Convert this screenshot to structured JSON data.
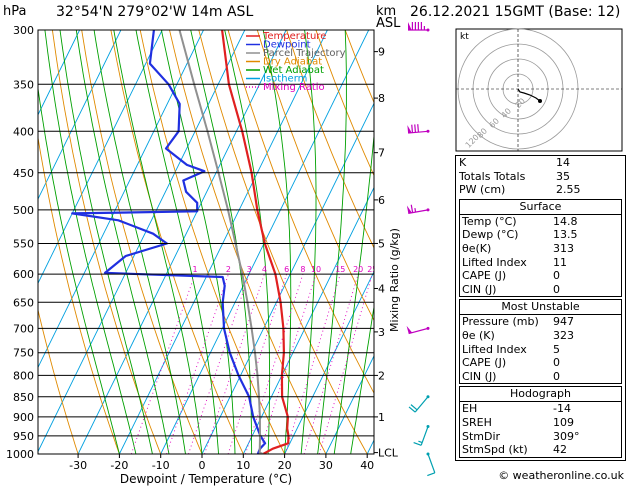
{
  "header": {
    "hpa_unit": "hPa",
    "location": "32°54'N  279°02'W  14m  ASL",
    "km_unit": "km",
    "asl_unit": "ASL",
    "datetime": "26.12.2021  15GMT  (Base: 12)"
  },
  "legend": [
    {
      "label": "Temperature",
      "color": "#e02020"
    },
    {
      "label": "Dewpoint",
      "color": "#2030e0"
    },
    {
      "label": "Parcel Trajectory",
      "color": "#909090"
    },
    {
      "label": "Dry Adiabat",
      "color": "#e08a00"
    },
    {
      "label": "Wet Adiabat",
      "color": "#00a000"
    },
    {
      "label": "Isotherm",
      "color": "#00a0e0"
    },
    {
      "label": "Mixing Ratio",
      "color": "#e000c0"
    }
  ],
  "chart_data": {
    "type": "line",
    "xlabel": "Dewpoint / Temperature (°C)",
    "ylabel_right": "Mixing Ratio (g/kg)",
    "x_ticks": [
      -30,
      -20,
      -10,
      0,
      10,
      20,
      30,
      40
    ],
    "x_tick_labels": [
      "-30",
      "-20",
      "-10",
      "0",
      "10",
      "20",
      "30",
      "40"
    ],
    "pressure_levels": [
      300,
      350,
      400,
      450,
      500,
      550,
      600,
      650,
      700,
      750,
      800,
      850,
      900,
      950,
      1000
    ],
    "pressure_labels": [
      "300",
      "350",
      "400",
      "450",
      "500",
      "550",
      "600",
      "650",
      "700",
      "750",
      "800",
      "850",
      "900",
      "950",
      "1000"
    ],
    "km_ticks": [
      {
        "label": "9",
        "p": 319
      },
      {
        "label": "8",
        "p": 364
      },
      {
        "label": "7",
        "p": 425
      },
      {
        "label": "6",
        "p": 486
      },
      {
        "label": "5",
        "p": 550
      },
      {
        "label": "4",
        "p": 625
      },
      {
        "label": "3",
        "p": 707
      },
      {
        "label": "2",
        "p": 800
      },
      {
        "label": "1",
        "p": 900
      },
      {
        "label": "LCL",
        "p": 996
      }
    ],
    "mixing_ratio_labels": [
      "1",
      "2",
      "3",
      "4",
      "6",
      "8",
      "10",
      "15",
      "20",
      "25"
    ],
    "mixing_ratio_values": [
      1,
      2,
      3,
      4,
      6,
      8,
      10,
      15,
      20,
      25
    ],
    "series": [
      {
        "name": "Temperature",
        "color": "#e02020",
        "points": [
          [
            1000,
            14.8
          ],
          [
            985,
            16.5
          ],
          [
            970,
            19.6
          ],
          [
            950,
            18.8
          ],
          [
            930,
            17.6
          ],
          [
            900,
            16.4
          ],
          [
            850,
            12.6
          ],
          [
            800,
            10.0
          ],
          [
            750,
            7.8
          ],
          [
            700,
            4.8
          ],
          [
            650,
            1.0
          ],
          [
            600,
            -3.6
          ],
          [
            550,
            -9.8
          ],
          [
            500,
            -15.6
          ],
          [
            450,
            -21.4
          ],
          [
            400,
            -28.6
          ],
          [
            350,
            -37.4
          ],
          [
            300,
            -45.5
          ]
        ]
      },
      {
        "name": "Dewpoint",
        "color": "#2030e0",
        "points": [
          [
            1000,
            13.5
          ],
          [
            985,
            13.4
          ],
          [
            970,
            14.0
          ],
          [
            950,
            12.0
          ],
          [
            900,
            8.0
          ],
          [
            850,
            4.6
          ],
          [
            800,
            -0.5
          ],
          [
            750,
            -5.3
          ],
          [
            700,
            -9.6
          ],
          [
            650,
            -13.0
          ],
          [
            620,
            -14.5
          ],
          [
            605,
            -16.0
          ],
          [
            598,
            -45.0
          ],
          [
            570,
            -42.0
          ],
          [
            550,
            -33.5
          ],
          [
            535,
            -38.0
          ],
          [
            515,
            -48.0
          ],
          [
            505,
            -60.0
          ],
          [
            502,
            -30.0
          ],
          [
            490,
            -31.0
          ],
          [
            475,
            -35.0
          ],
          [
            460,
            -37.0
          ],
          [
            448,
            -33.0
          ],
          [
            440,
            -38.0
          ],
          [
            420,
            -45.0
          ],
          [
            400,
            -44.0
          ],
          [
            370,
            -47.0
          ],
          [
            350,
            -52.0
          ],
          [
            330,
            -59.0
          ],
          [
            300,
            -62.0
          ]
        ]
      },
      {
        "name": "Parcel Trajectory",
        "color": "#909090",
        "points": [
          [
            1000,
            14.8
          ],
          [
            996,
            13.8
          ],
          [
            950,
            11.9
          ],
          [
            900,
            9.6
          ],
          [
            850,
            7.0
          ],
          [
            800,
            4.1
          ],
          [
            750,
            0.8
          ],
          [
            700,
            -2.9
          ],
          [
            650,
            -7.0
          ],
          [
            600,
            -11.6
          ],
          [
            550,
            -16.9
          ],
          [
            500,
            -22.7
          ],
          [
            450,
            -29.4
          ],
          [
            400,
            -37.0
          ],
          [
            350,
            -45.8
          ],
          [
            300,
            -55.8
          ]
        ]
      }
    ],
    "wind_barbs": [
      {
        "p": 300,
        "dir": 270,
        "speed": 95
      },
      {
        "p": 400,
        "dir": 265,
        "speed": 80
      },
      {
        "p": 500,
        "dir": 260,
        "speed": 65
      },
      {
        "p": 700,
        "dir": 255,
        "speed": 50
      },
      {
        "p": 850,
        "dir": 220,
        "speed": 20
      },
      {
        "p": 925,
        "dir": 200,
        "speed": 15
      },
      {
        "p": 1000,
        "dir": 160,
        "speed": 10
      }
    ]
  },
  "hodograph": {
    "unit_label": "kt",
    "ring_labels": [
      "20",
      "40",
      "60",
      "80",
      "120"
    ],
    "trace": [
      [
        0,
        0
      ],
      [
        2,
        -3
      ],
      [
        6,
        -4
      ],
      [
        12,
        -6
      ],
      [
        18,
        -9
      ],
      [
        22,
        -12
      ]
    ]
  },
  "indices": {
    "rows": [
      {
        "label": "K",
        "value": "14"
      },
      {
        "label": "Totals Totals",
        "value": "35"
      },
      {
        "label": "PW (cm)",
        "value": "2.55"
      }
    ]
  },
  "surface": {
    "title": "Surface",
    "rows": [
      {
        "label": "Temp (°C)",
        "value": "14.8"
      },
      {
        "label": "Dewp (°C)",
        "value": "13.5"
      },
      {
        "label": "θe(K)",
        "value": "313"
      },
      {
        "label": "Lifted Index",
        "value": "11"
      },
      {
        "label": "CAPE (J)",
        "value": "0"
      },
      {
        "label": "CIN (J)",
        "value": "0"
      }
    ]
  },
  "most_unstable": {
    "title": "Most Unstable",
    "rows": [
      {
        "label": "Pressure (mb)",
        "value": "947"
      },
      {
        "label": "θe (K)",
        "value": "323"
      },
      {
        "label": "Lifted Index",
        "value": "5"
      },
      {
        "label": "CAPE (J)",
        "value": "0"
      },
      {
        "label": "CIN (J)",
        "value": "0"
      }
    ]
  },
  "hodograph_table": {
    "title": "Hodograph",
    "rows": [
      {
        "label": "EH",
        "value": "-14"
      },
      {
        "label": "SREH",
        "value": "109"
      },
      {
        "label": "StmDir",
        "value": "309°"
      },
      {
        "label": "StmSpd (kt)",
        "value": "42"
      }
    ]
  },
  "footer": {
    "copyright": "© weatheronline.co.uk"
  }
}
